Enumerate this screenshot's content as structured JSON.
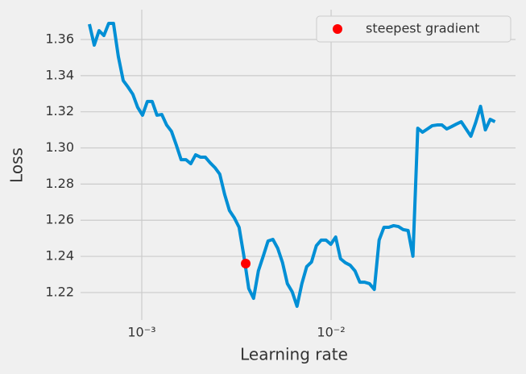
{
  "chart_data": {
    "type": "line",
    "xlabel": "Learning rate",
    "ylabel": "Loss",
    "xscale": "log",
    "grid": true,
    "legend": "upper right",
    "x": [
      0.000529,
      0.000561,
      0.000595,
      0.000631,
      0.000669,
      0.000709,
      0.000752,
      0.000798,
      0.000846,
      0.000897,
      0.000951,
      0.001009,
      0.00107,
      0.001135,
      0.001203,
      0.001276,
      0.001353,
      0.001435,
      0.001522,
      0.001614,
      0.001712,
      0.001815,
      0.001925,
      0.002041,
      0.002165,
      0.002296,
      0.002435,
      0.002582,
      0.002738,
      0.002904,
      0.003079,
      0.003266,
      0.003463,
      0.003673,
      0.003895,
      0.00413,
      0.00438,
      0.004645,
      0.004926,
      0.005224,
      0.00554,
      0.005875,
      0.00623,
      0.006607,
      0.007007,
      0.007431,
      0.00788,
      0.008357,
      0.008862,
      0.009398,
      0.009967,
      0.01057,
      0.01121,
      0.01189,
      0.01261,
      0.01337,
      0.01418,
      0.01504,
      0.01595,
      0.01691,
      0.01793,
      0.01902,
      0.02017,
      0.02139,
      0.02268,
      0.02405,
      0.02551,
      0.02705,
      0.02869,
      0.03042,
      0.03226,
      0.03421,
      0.03628,
      0.03848,
      0.04081,
      0.04327,
      0.04589,
      0.04867,
      0.05161,
      0.05473,
      0.05804,
      0.06155,
      0.06527,
      0.06922,
      0.07341
    ],
    "series": [
      {
        "color": "#008fd5",
        "values": [
          1.3685,
          1.3569,
          1.3649,
          1.3622,
          1.3689,
          1.3689,
          1.3506,
          1.3373,
          1.3337,
          1.3297,
          1.3225,
          1.3181,
          1.3257,
          1.3257,
          1.3181,
          1.3185,
          1.3127,
          1.3092,
          1.3016,
          1.2935,
          1.2935,
          1.2913,
          1.2962,
          1.2949,
          1.2949,
          1.2918,
          1.2891,
          1.2855,
          1.2744,
          1.2654,
          1.2614,
          1.2561,
          1.2401,
          1.2222,
          1.2168,
          1.232,
          1.2401,
          1.2485,
          1.2494,
          1.2445,
          1.2365,
          1.2249,
          1.2204,
          1.2124,
          1.2249,
          1.2343,
          1.2369,
          1.2459,
          1.249,
          1.249,
          1.2467,
          1.2507,
          1.2387,
          1.2365,
          1.2351,
          1.232,
          1.2257,
          1.2257,
          1.2249,
          1.2217,
          1.249,
          1.2561,
          1.2561,
          1.257,
          1.2565,
          1.2548,
          1.2543,
          1.2401,
          1.3109,
          1.3087,
          1.3105,
          1.3123,
          1.3127,
          1.3127,
          1.3105,
          1.3118,
          1.3132,
          1.3145,
          1.3105,
          1.3065,
          1.3141,
          1.323,
          1.31,
          1.3158,
          1.3145
        ]
      },
      {
        "name": "steepest gradient",
        "type": "scatter",
        "color": "#ff0000",
        "x": [
          0.00354
        ],
        "values": [
          1.236
        ]
      }
    ],
    "xlim": [
      0.000475,
      0.0942
    ],
    "xticks": [
      {
        "value": 0.001,
        "label": "10⁻³"
      },
      {
        "value": 0.01,
        "label": "10⁻²"
      }
    ],
    "ylim": [
      1.2048,
      1.3765
    ],
    "yticks": [
      1.22,
      1.24,
      1.26,
      1.28,
      {
        "value": 1.3,
        "label": "1.30"
      },
      1.32,
      1.34,
      1.36
    ]
  }
}
